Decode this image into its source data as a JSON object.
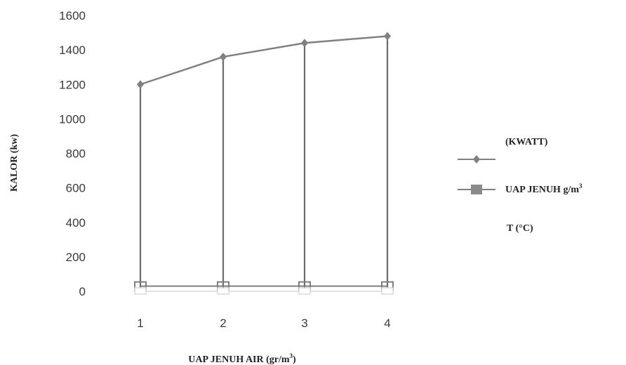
{
  "chart_data": {
    "type": "line",
    "categories": [
      "1",
      "2",
      "3",
      "4"
    ],
    "xlabel": "UAP JENUH AIR (gr/m",
    "xlabel_sup": "3",
    "xlabel_end": ")",
    "ylabel": "KALOR (kw)",
    "ylim": [
      0,
      1600
    ],
    "yticks": [
      "0",
      "200",
      "400",
      "600",
      "800",
      "1000",
      "1200",
      "1400",
      "1600"
    ],
    "grid": false,
    "legend_position": "right",
    "series": [
      {
        "name": "(KWATT)",
        "values": [
          1200,
          1360,
          1440,
          1480
        ],
        "color": "#808080",
        "marker": "diamond"
      },
      {
        "name": "UAP JENUH g/m",
        "name_sup": "3",
        "values": [
          30,
          30,
          30,
          30
        ],
        "color": "#7f7f7f",
        "marker": "square"
      },
      {
        "name": "T (°C)",
        "values": [
          0,
          0,
          0,
          0
        ],
        "color": "#d9d9d9",
        "marker": "triangle"
      }
    ]
  }
}
